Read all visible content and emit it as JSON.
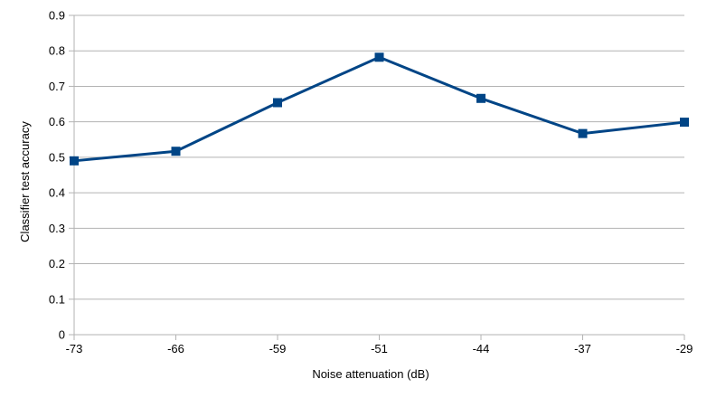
{
  "chart_data": {
    "type": "line",
    "title": "",
    "xlabel": "Noise attenuation (dB)",
    "ylabel": "Classifier test accuracy",
    "categories": [
      "-73",
      "-66",
      "-59",
      "-51",
      "-44",
      "-37",
      "-29"
    ],
    "series": [
      {
        "values": [
          0.49,
          0.517,
          0.654,
          0.782,
          0.666,
          0.567,
          0.599
        ],
        "color": "#004586",
        "marker": "square"
      }
    ],
    "ylim": [
      0,
      0.9
    ],
    "yticks": [
      "0",
      "0.1",
      "0.2",
      "0.3",
      "0.4",
      "0.5",
      "0.6",
      "0.7",
      "0.8",
      "0.9"
    ],
    "grid": "horizontal",
    "legend": "none",
    "colors": {
      "grid": "#b3b3b3",
      "axis": "#b3b3b3",
      "series": "#004586"
    }
  }
}
